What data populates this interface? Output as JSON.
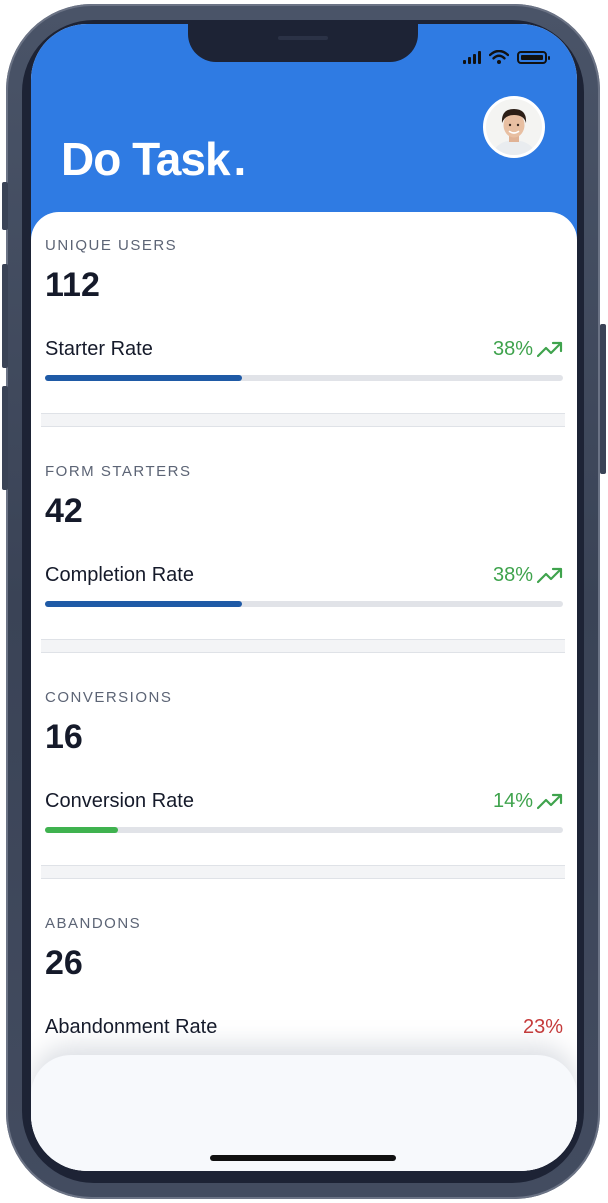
{
  "app": {
    "title": "Do Task",
    "title_dot": "."
  },
  "colors": {
    "header": "#2f7be3",
    "bar_blue": "#1f5aa6",
    "bar_green": "#3fb24f",
    "positive": "#3fa34d",
    "negative": "#c63a3a"
  },
  "icons": {
    "signal": "signal-icon",
    "wifi": "wifi-icon",
    "battery": "battery-icon",
    "trend": "trending-up-icon"
  },
  "cards": [
    {
      "label": "UNIQUE USERS",
      "value": "112",
      "rate_label": "Starter Rate",
      "rate_value": "38%",
      "progress": 0.38,
      "trend": "up",
      "color": "blue"
    },
    {
      "label": "FORM STARTERS",
      "value": "42",
      "rate_label": "Completion Rate",
      "rate_value": "38%",
      "progress": 0.38,
      "trend": "up",
      "color": "blue"
    },
    {
      "label": "CONVERSIONS",
      "value": "16",
      "rate_label": "Conversion Rate",
      "rate_value": "14%",
      "progress": 0.14,
      "trend": "up",
      "color": "green"
    },
    {
      "label": "ABANDONS",
      "value": "26",
      "rate_label": "Abandonment Rate",
      "rate_value": "23%",
      "progress": 0.23,
      "trend": "none",
      "color": "red"
    }
  ]
}
